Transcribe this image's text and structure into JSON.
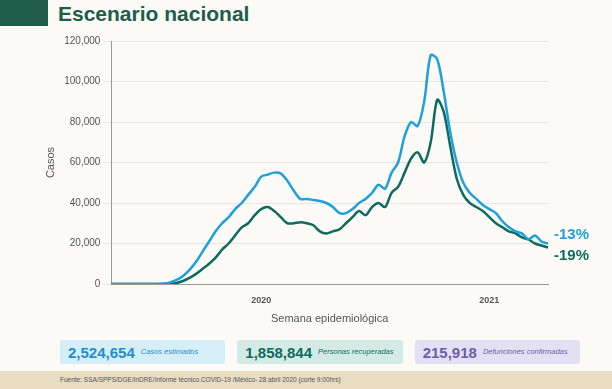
{
  "chart_data": {
    "type": "line",
    "title": "Escenario nacional",
    "y_label": "Casos",
    "x_label": "Semana epidemiológica",
    "categories": [
      null,
      null,
      null,
      null,
      null,
      null,
      null,
      null,
      null,
      null,
      null,
      null,
      null,
      null,
      null,
      null,
      null,
      null,
      null,
      null,
      null,
      null,
      null,
      "2020",
      null,
      null,
      null,
      null,
      null,
      null,
      null,
      null,
      null,
      null,
      null,
      null,
      null,
      null,
      null,
      null,
      null,
      null,
      null,
      null,
      null,
      null,
      null,
      null,
      null,
      null,
      null,
      null,
      null,
      null,
      null,
      null,
      null,
      null,
      "2021",
      null,
      null,
      null,
      null,
      null,
      null,
      null,
      null,
      null
    ],
    "series": [
      {
        "color": "#1fa0dc",
        "annotation": "-13%",
        "values": [
          0,
          0,
          0,
          0,
          0,
          0,
          0,
          0,
          200,
          800,
          2000,
          4000,
          7000,
          11000,
          16000,
          21000,
          26000,
          30000,
          33000,
          37000,
          40000,
          44000,
          48000,
          53000,
          54000,
          55000,
          54500,
          51000,
          46000,
          42000,
          42000,
          41500,
          41000,
          40000,
          38000,
          35000,
          35000,
          37000,
          40000,
          42000,
          45000,
          49000,
          47000,
          55000,
          60000,
          73000,
          80000,
          78000,
          90000,
          113000,
          111000,
          95000,
          75000,
          60000,
          50000,
          45000,
          42000,
          39000,
          37000,
          35000,
          31000,
          28000,
          26000,
          25000,
          22000,
          24000,
          21000,
          20000
        ]
      },
      {
        "color": "#0e6b5e",
        "annotation": "-19%",
        "values": [
          0,
          0,
          0,
          0,
          0,
          0,
          0,
          0,
          0,
          0,
          500,
          1500,
          3000,
          5000,
          7500,
          10000,
          13000,
          17000,
          20000,
          24000,
          28000,
          30000,
          34000,
          37000,
          38000,
          36000,
          33000,
          30000,
          30000,
          30500,
          30000,
          29000,
          26000,
          25000,
          26000,
          27000,
          30000,
          33000,
          36000,
          34000,
          38000,
          40000,
          38000,
          45000,
          48000,
          55000,
          62000,
          65000,
          60000,
          70000,
          91000,
          85000,
          68000,
          52000,
          44000,
          40000,
          38000,
          36000,
          33000,
          30000,
          28000,
          26000,
          25000,
          23000,
          22000,
          20000,
          19000,
          18000
        ]
      }
    ],
    "ylim": [
      0,
      120000
    ],
    "yticks": [
      {
        "value": 0,
        "label": "0"
      },
      {
        "value": 20000,
        "label": "20,000"
      },
      {
        "value": 40000,
        "label": "40,000"
      },
      {
        "value": 60000,
        "label": "60,000"
      },
      {
        "value": 80000,
        "label": "80,000"
      },
      {
        "value": 100000,
        "label": "100,000"
      },
      {
        "value": 120000,
        "label": "120,000"
      }
    ],
    "grid": true,
    "stats": [
      {
        "value": "2,524,654",
        "label": "Casos estimados",
        "color": "#1f8fce"
      },
      {
        "value": "1,858,844",
        "label": "Personas recuperadas",
        "color": "#0e6b5e"
      },
      {
        "value": "215,918",
        "label": "Defunciones confirmadas",
        "color": "#6b5fa8"
      }
    ],
    "source": "Fuente: SSA/SPPS/DGE/InDRE/Informe técnico.COVID-19 /México- 28 abril 2020 (corte 9:00hrs)"
  }
}
